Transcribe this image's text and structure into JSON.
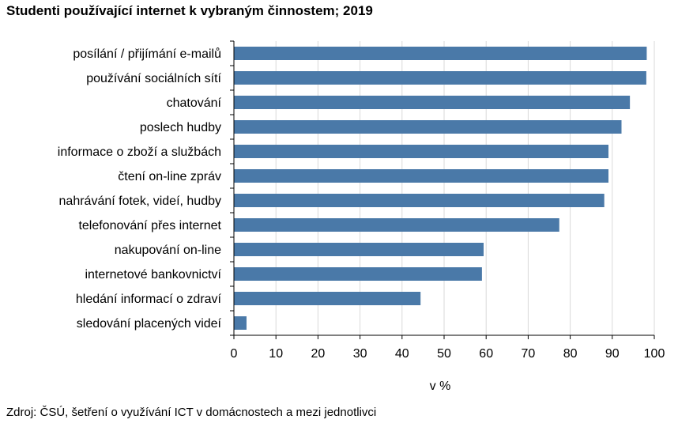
{
  "chart_data": {
    "type": "bar",
    "orientation": "horizontal",
    "title": "Studenti používající internet k vybraným činnostem; 2019",
    "categories": [
      "posílání / přijímání e-mailů",
      "používání sociálních sítí",
      "chatování",
      "poslech hudby",
      "informace o zboží a službách",
      "čtení on-line zpráv",
      "nahrávání fotek, videí, hudby",
      "telefonování přes internet",
      "nakupování on-line",
      "internetové bankovnictví",
      "hledání informací o zdraví",
      "sledování placených videí"
    ],
    "values": [
      98.2,
      98.1,
      94.2,
      92.2,
      89.1,
      89.1,
      88.1,
      77.4,
      59.4,
      59.0,
      44.4,
      3.0
    ],
    "xlabel": "v %",
    "ylabel": "",
    "xlim": [
      0,
      100
    ],
    "xticks": [
      "0",
      "10",
      "20",
      "30",
      "40",
      "50",
      "60",
      "70",
      "80",
      "90",
      "100"
    ],
    "grid": "vertical",
    "bar_color": "#4a79a8"
  },
  "source": "Zdroj: ČSÚ, šetření o využívání ICT v domácnostech a mezi jednotlivci"
}
